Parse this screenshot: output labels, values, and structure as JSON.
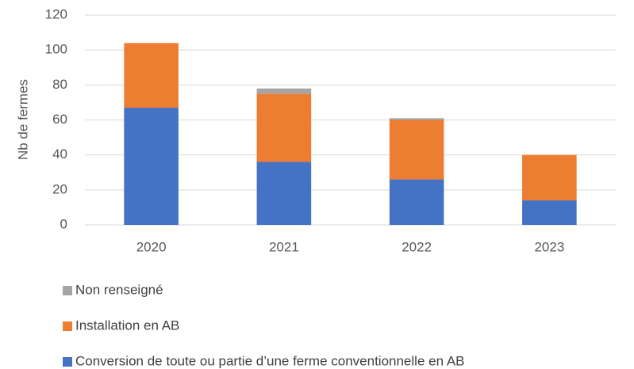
{
  "chart_data": {
    "type": "stacked_bar",
    "y_label": "Nb de fermes",
    "categories": [
      "2020",
      "2021",
      "2022",
      "2023"
    ],
    "series": [
      {
        "name": "Conversion de toute ou partie d’une ferme conventionnelle en AB",
        "color": "#4472c4",
        "values": [
          67,
          36,
          26,
          14
        ]
      },
      {
        "name": "Installation en AB",
        "color": "#ed7d31",
        "values": [
          37,
          39,
          34,
          26
        ]
      },
      {
        "name": "Non renseigné",
        "color": "#a5a5a5",
        "values": [
          0,
          3,
          1,
          0
        ]
      }
    ],
    "ylim": [
      0,
      120
    ],
    "yticks": [
      0,
      20,
      40,
      60,
      80,
      100,
      120
    ],
    "grid": true,
    "legend": "bottom"
  }
}
